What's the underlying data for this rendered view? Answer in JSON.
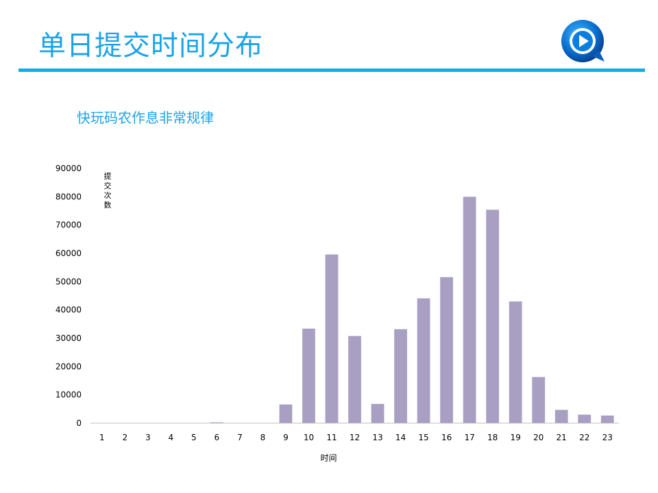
{
  "slide": {
    "title": "单日提交时间分布",
    "subtitle": "快玩码农作息非常规律",
    "logo_icon": "play-q-logo-icon"
  },
  "colors": {
    "accent": "#11aee6",
    "title_text": "#1aa3e8",
    "bar": "#a99fc2",
    "axis": "#bfbfbf",
    "tick_text": "#000000"
  },
  "chart_data": {
    "type": "bar",
    "title": "",
    "xlabel": "时间",
    "ylabel": "提交次数",
    "ylim": [
      0,
      90000
    ],
    "yticks": [
      0,
      10000,
      20000,
      30000,
      40000,
      50000,
      60000,
      70000,
      80000,
      90000
    ],
    "grid": false,
    "legend": "none",
    "categories": [
      "1",
      "2",
      "3",
      "4",
      "5",
      "6",
      "7",
      "8",
      "9",
      "10",
      "11",
      "12",
      "13",
      "14",
      "15",
      "16",
      "17",
      "18",
      "19",
      "20",
      "21",
      "22",
      "23"
    ],
    "values": [
      0,
      0,
      0,
      0,
      0,
      300,
      0,
      0,
      6600,
      33400,
      59600,
      30800,
      6800,
      33200,
      44100,
      51600,
      80000,
      75400,
      43000,
      16300,
      4700,
      3000,
      2700
    ]
  }
}
